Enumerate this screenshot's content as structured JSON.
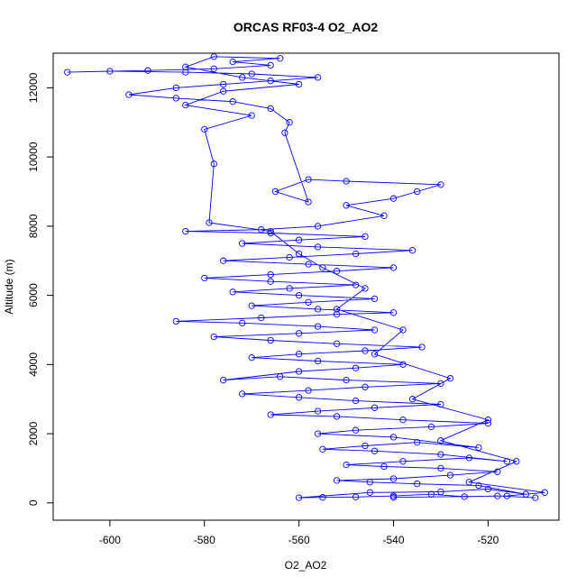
{
  "chart_data": {
    "type": "scatter",
    "title": "ORCAS RF03-4 O2_AO2",
    "xlabel": "O2_AO2",
    "ylabel": "Altitude (m)",
    "xlim": [
      -612,
      -505
    ],
    "ylim": [
      -500,
      13000
    ],
    "x_ticks": [
      -600,
      -580,
      -560,
      -540,
      -520
    ],
    "y_ticks": [
      0,
      2000,
      4000,
      6000,
      8000,
      10000,
      12000
    ],
    "x_tick_labels": [
      "-600",
      "-580",
      "-560",
      "-540",
      "-520"
    ],
    "y_tick_labels": [
      "0",
      "2000",
      "4000",
      "6000",
      "8000",
      "10000",
      "12000"
    ],
    "grid": false,
    "legend": "none",
    "marker": "open-circle",
    "connected": true,
    "series": [
      {
        "color": "#0000ff",
        "points": [
          [
            -510,
            150
          ],
          [
            -518,
            200
          ],
          [
            -525,
            180
          ],
          [
            -532,
            250
          ],
          [
            -540,
            200
          ],
          [
            -548,
            170
          ],
          [
            -555,
            160
          ],
          [
            -560,
            150
          ],
          [
            -545,
            300
          ],
          [
            -530,
            320
          ],
          [
            -520,
            400
          ],
          [
            -512,
            250
          ],
          [
            -522,
            500
          ],
          [
            -535,
            550
          ],
          [
            -545,
            600
          ],
          [
            -552,
            650
          ],
          [
            -540,
            700
          ],
          [
            -528,
            800
          ],
          [
            -518,
            900
          ],
          [
            -530,
            1000
          ],
          [
            -542,
            1050
          ],
          [
            -550,
            1100
          ],
          [
            -538,
            1200
          ],
          [
            -524,
            1300
          ],
          [
            -516,
            1200
          ],
          [
            -530,
            1400
          ],
          [
            -544,
            1500
          ],
          [
            -555,
            1550
          ],
          [
            -546,
            1650
          ],
          [
            -535,
            1750
          ],
          [
            -522,
            1600
          ],
          [
            -540,
            1900
          ],
          [
            -556,
            2000
          ],
          [
            -548,
            2100
          ],
          [
            -532,
            2200
          ],
          [
            -520,
            2300
          ],
          [
            -538,
            2400
          ],
          [
            -552,
            2500
          ],
          [
            -566,
            2550
          ],
          [
            -556,
            2650
          ],
          [
            -544,
            2750
          ],
          [
            -530,
            2850
          ],
          [
            -548,
            2950
          ],
          [
            -560,
            3050
          ],
          [
            -572,
            3150
          ],
          [
            -558,
            3250
          ],
          [
            -546,
            3350
          ],
          [
            -530,
            3450
          ],
          [
            -550,
            3550
          ],
          [
            -564,
            3650
          ],
          [
            -576,
            3550
          ],
          [
            -560,
            3800
          ],
          [
            -548,
            3900
          ],
          [
            -538,
            4000
          ],
          [
            -556,
            4100
          ],
          [
            -570,
            4200
          ],
          [
            -560,
            4300
          ],
          [
            -546,
            4400
          ],
          [
            -534,
            4500
          ],
          [
            -552,
            4600
          ],
          [
            -566,
            4700
          ],
          [
            -578,
            4800
          ],
          [
            -560,
            4900
          ],
          [
            -544,
            5000
          ],
          [
            -556,
            5100
          ],
          [
            -572,
            5200
          ],
          [
            -586,
            5250
          ],
          [
            -568,
            5350
          ],
          [
            -552,
            5450
          ],
          [
            -540,
            5500
          ],
          [
            -556,
            5600
          ],
          [
            -570,
            5700
          ],
          [
            -558,
            5800
          ],
          [
            -544,
            5900
          ],
          [
            -560,
            6000
          ],
          [
            -574,
            6100
          ],
          [
            -562,
            6200
          ],
          [
            -548,
            6300
          ],
          [
            -566,
            6400
          ],
          [
            -580,
            6500
          ],
          [
            -566,
            6600
          ],
          [
            -552,
            6700
          ],
          [
            -540,
            6800
          ],
          [
            -558,
            6900
          ],
          [
            -576,
            7000
          ],
          [
            -562,
            7100
          ],
          [
            -548,
            7200
          ],
          [
            -536,
            7300
          ],
          [
            -556,
            7400
          ],
          [
            -572,
            7500
          ],
          [
            -560,
            7600
          ],
          [
            -546,
            7700
          ],
          [
            -566,
            7800
          ],
          [
            -584,
            7850
          ],
          [
            -568,
            7900
          ],
          [
            -556,
            8000
          ],
          [
            -542,
            8300
          ],
          [
            -550,
            8600
          ],
          [
            -540,
            8800
          ],
          [
            -535,
            9000
          ],
          [
            -530,
            9200
          ],
          [
            -550,
            9300
          ],
          [
            -558,
            9350
          ],
          [
            -565,
            9000
          ],
          [
            -558,
            8700
          ],
          [
            -563,
            10700
          ],
          [
            -562,
            11000
          ],
          [
            -566,
            11400
          ],
          [
            -574,
            11600
          ],
          [
            -586,
            11700
          ],
          [
            -596,
            11800
          ],
          [
            -586,
            12000
          ],
          [
            -576,
            12100
          ],
          [
            -566,
            12200
          ],
          [
            -556,
            12300
          ],
          [
            -570,
            12400
          ],
          [
            -584,
            12450
          ],
          [
            -600,
            12480
          ],
          [
            -609,
            12450
          ],
          [
            -592,
            12500
          ],
          [
            -578,
            12550
          ],
          [
            -566,
            12650
          ],
          [
            -574,
            12750
          ],
          [
            -564,
            12850
          ],
          [
            -578,
            12900
          ],
          [
            -584,
            12600
          ],
          [
            -572,
            12300
          ],
          [
            -560,
            12100
          ],
          [
            -576,
            11900
          ],
          [
            -584,
            11500
          ],
          [
            -570,
            11200
          ],
          [
            -580,
            10800
          ],
          [
            -578,
            9800
          ],
          [
            -579,
            8100
          ],
          [
            -566,
            7850
          ],
          [
            -560,
            7200
          ],
          [
            -555,
            6800
          ],
          [
            -546,
            6200
          ],
          [
            -552,
            5600
          ],
          [
            -538,
            5000
          ],
          [
            -544,
            4300
          ],
          [
            -528,
            3600
          ],
          [
            -536,
            3000
          ],
          [
            -520,
            2400
          ],
          [
            -530,
            1800
          ],
          [
            -514,
            1200
          ],
          [
            -524,
            600
          ],
          [
            -508,
            300
          ],
          [
            -516,
            200
          ],
          [
            -540,
            160
          ]
        ]
      }
    ]
  }
}
